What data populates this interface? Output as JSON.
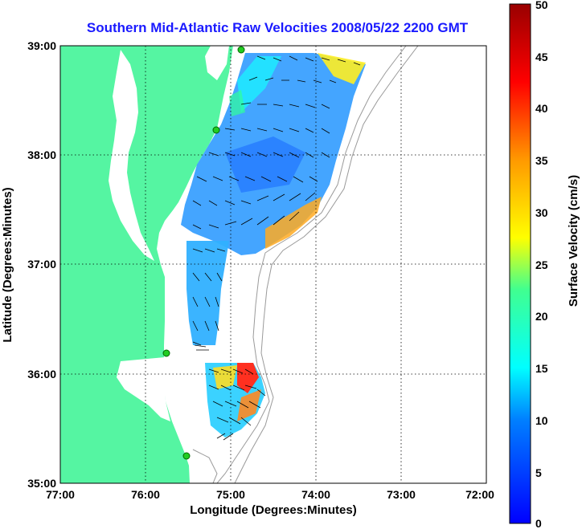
{
  "title": "Southern Mid-Atlantic Raw Velocities 2008/05/22 2200 GMT",
  "x_axis": {
    "label": "Longitude (Degrees:Minutes)",
    "ticks": [
      "77:00",
      "76:00",
      "75:00",
      "74:00",
      "73:00",
      "72:00"
    ]
  },
  "y_axis": {
    "label": "Latitude (Degrees:Minutes)",
    "ticks": [
      "39:00",
      "38:00",
      "37:00",
      "36:00",
      "35:00"
    ]
  },
  "colorbar": {
    "label": "Surface Velocity (cm/s)",
    "ticks": [
      "50",
      "45",
      "40",
      "35",
      "30",
      "25",
      "20",
      "15",
      "10",
      "5",
      "0"
    ],
    "min": 0,
    "max": 50
  },
  "colors": {
    "land": "#55f5a2",
    "title": "#1a1aff",
    "station": "#22cc22"
  },
  "grid": true
}
